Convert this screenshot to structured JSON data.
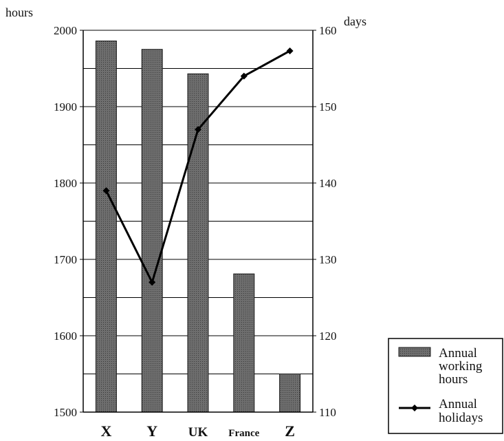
{
  "chart_data": {
    "type": "bar",
    "categories": [
      "X",
      "Y",
      "UK",
      "France",
      "Z"
    ],
    "y_left": {
      "unit": "hours",
      "min": 1500,
      "max": 2000,
      "ticks": [
        1500,
        1600,
        1700,
        1800,
        1900,
        2000
      ]
    },
    "y_right": {
      "unit": "days",
      "min": 110,
      "max": 160,
      "ticks": [
        110,
        120,
        130,
        140,
        150,
        160
      ]
    },
    "grid": true,
    "series": [
      {
        "name": "Annual working hours",
        "name_lines": [
          "Annual",
          "working",
          "hours"
        ],
        "type": "bar",
        "axis": "left",
        "values": [
          1986,
          1975,
          1943,
          1681,
          1550
        ]
      },
      {
        "name": "Annual holidays",
        "name_lines": [
          "Annual",
          "holidays"
        ],
        "type": "line",
        "axis": "right",
        "values": [
          139,
          127,
          147,
          154,
          157.3
        ]
      }
    ],
    "legend_position": "bottom-right"
  },
  "colors": {
    "bar_fill": "#6e6e6e",
    "bar_stroke": "#1a1a1a",
    "line": "#000000",
    "grid": "#000000"
  }
}
